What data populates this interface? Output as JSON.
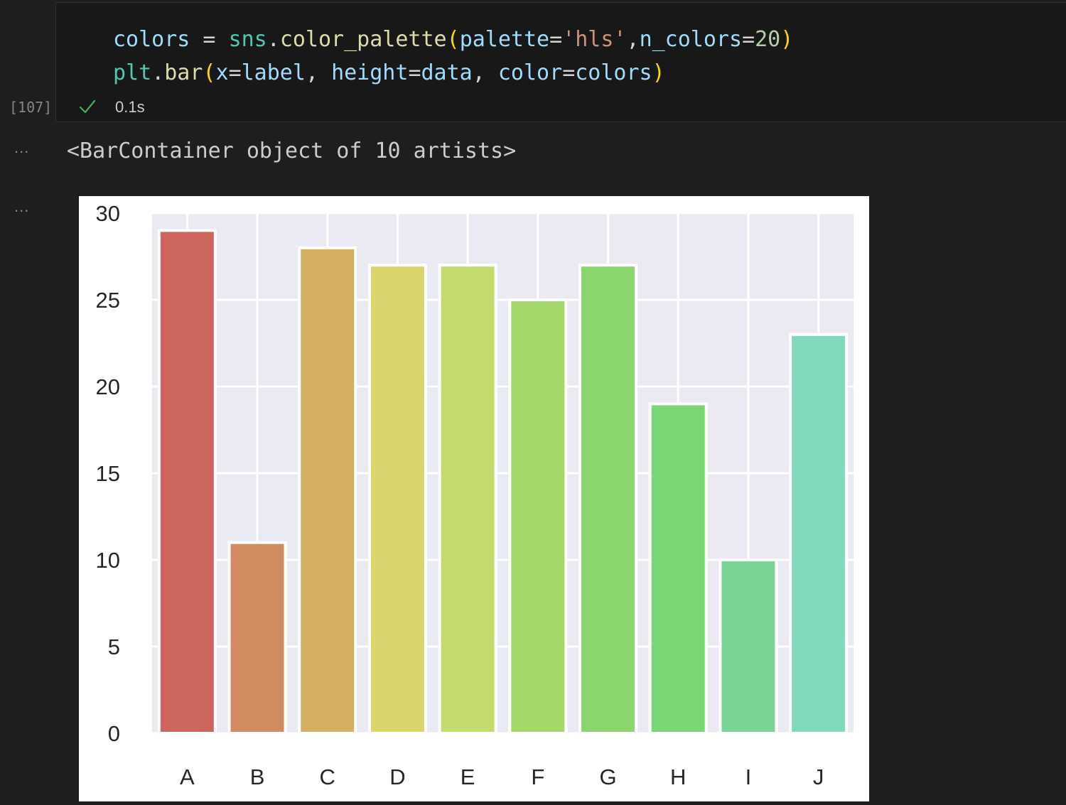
{
  "cell": {
    "execution_count": "[107]",
    "status_icon": "check-icon",
    "timing": "0.1s",
    "code_lines": [
      [
        {
          "t": "colors",
          "c": "var"
        },
        {
          "t": " = ",
          "c": "op"
        },
        {
          "t": "sns",
          "c": "mod"
        },
        {
          "t": ".",
          "c": "op"
        },
        {
          "t": "color_palette",
          "c": "fn"
        },
        {
          "t": "(",
          "c": "par"
        },
        {
          "t": "palette",
          "c": "var"
        },
        {
          "t": "=",
          "c": "op"
        },
        {
          "t": "'hls'",
          "c": "str"
        },
        {
          "t": ",",
          "c": "op"
        },
        {
          "t": "n_colors",
          "c": "var"
        },
        {
          "t": "=",
          "c": "op"
        },
        {
          "t": "20",
          "c": "num"
        },
        {
          "t": ")",
          "c": "par"
        }
      ],
      [
        {
          "t": "plt",
          "c": "mod"
        },
        {
          "t": ".",
          "c": "op"
        },
        {
          "t": "bar",
          "c": "fn"
        },
        {
          "t": "(",
          "c": "par"
        },
        {
          "t": "x",
          "c": "var"
        },
        {
          "t": "=",
          "c": "op"
        },
        {
          "t": "label",
          "c": "var"
        },
        {
          "t": ", ",
          "c": "op"
        },
        {
          "t": "height",
          "c": "var"
        },
        {
          "t": "=",
          "c": "op"
        },
        {
          "t": "data",
          "c": "var"
        },
        {
          "t": ", ",
          "c": "op"
        },
        {
          "t": "color",
          "c": "var"
        },
        {
          "t": "=",
          "c": "op"
        },
        {
          "t": "colors",
          "c": "var"
        },
        {
          "t": ")",
          "c": "par"
        }
      ]
    ]
  },
  "output": {
    "ellipsis": "...",
    "text": "<BarContainer object of 10 artists>"
  },
  "chart_data": {
    "type": "bar",
    "categories": [
      "A",
      "B",
      "C",
      "D",
      "E",
      "F",
      "G",
      "H",
      "I",
      "J"
    ],
    "values": [
      29,
      11,
      28,
      27,
      27,
      25,
      27,
      19,
      10,
      23
    ],
    "colors": [
      "#cc665c",
      "#d08b61",
      "#d4ae63",
      "#d9d56b",
      "#c3da6f",
      "#a3d86b",
      "#8ad66c",
      "#7ad673",
      "#7ad594",
      "#80d9bd"
    ],
    "ylim": [
      0,
      30
    ],
    "yticks": [
      "0",
      "5",
      "10",
      "15",
      "20",
      "25",
      "30"
    ],
    "grid": true,
    "background": "#eaeaf2",
    "title": "",
    "xlabel": "",
    "ylabel": ""
  }
}
